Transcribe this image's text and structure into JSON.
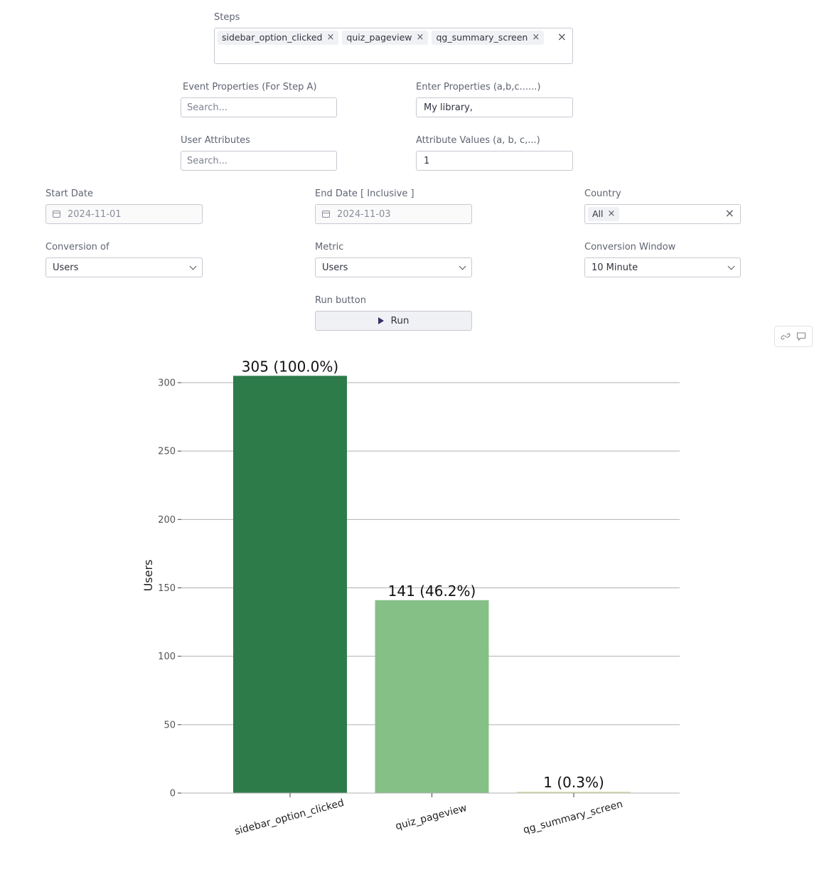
{
  "steps": {
    "label": "Steps",
    "chips": [
      "sidebar_option_clicked",
      "quiz_pageview",
      "qg_summary_screen"
    ]
  },
  "event_properties": {
    "label": "Event Properties (For Step A)",
    "placeholder": "Search..."
  },
  "enter_properties": {
    "label": "Enter Properties (a,b,c......)",
    "value": "My library,"
  },
  "user_attributes": {
    "label": "User Attributes",
    "placeholder": "Search..."
  },
  "attribute_values": {
    "label": "Attribute Values (a, b, c,...)",
    "value": "1"
  },
  "start_date": {
    "label": "Start Date",
    "value": "2024-11-01"
  },
  "end_date": {
    "label": "End Date [ Inclusive ]",
    "value": "2024-11-03"
  },
  "country": {
    "label": "Country",
    "chips": [
      "All"
    ]
  },
  "conversion_of": {
    "label": "Conversion of",
    "value": "Users"
  },
  "metric": {
    "label": "Metric",
    "value": "Users"
  },
  "conversion_window": {
    "label": "Conversion Window",
    "value": "10 Minute"
  },
  "run": {
    "label": "Run button",
    "button_label": "Run"
  },
  "toolbar": {
    "icons": [
      "link-icon",
      "comment-icon"
    ]
  },
  "chart_data": {
    "type": "bar",
    "categories": [
      "sidebar_option_clicked",
      "quiz_pageview",
      "qg_summary_screen"
    ],
    "values": [
      305,
      141,
      1
    ],
    "data_labels": [
      "305 (100.0%)",
      "141 (46.2%)",
      "1 (0.3%)"
    ],
    "colors": [
      "#2e7b4a",
      "#85c087",
      "#d7e5b3"
    ],
    "ylabel": "Users",
    "ylim": [
      0,
      310
    ],
    "yticks": [
      0,
      50,
      100,
      150,
      200,
      250,
      300
    ],
    "grid": true
  }
}
